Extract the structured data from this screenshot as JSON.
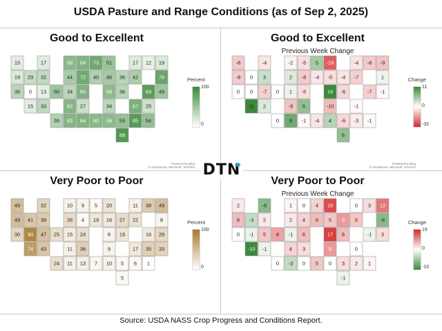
{
  "title": "USDA Pasture and Range Conditions (as of Sep 2, 2025)",
  "source": "Source:  USDA NASS Crop Progress and Conditions Report.",
  "brand": "DTN",
  "credit": {
    "line1": "Powered by Bing",
    "line2": "© GeoNames, Microsoft, TomTom"
  },
  "panels": {
    "ge": {
      "title": "Good to Excellent",
      "subtitle": "",
      "legend": {
        "title": "Percent",
        "max": "100",
        "min": "0",
        "colors": [
          "#ffffff",
          "#3a8a3a"
        ]
      },
      "states": {
        "WA": "15",
        "OR": "19",
        "ID": "29",
        "MT": "17",
        "ND": "59",
        "MN": "64",
        "WI": "73",
        "MI": "51",
        "NY": "17",
        "ME": "19",
        "VT": "12",
        "CA": "35",
        "NV": "0",
        "UT": "13",
        "WY": "32",
        "SD": "44",
        "IA": "72",
        "IL": "40",
        "IN": "46",
        "OH": "36",
        "PA": "42",
        "NH": "76",
        "MA": "49",
        "CO": "50",
        "NE": "34",
        "KS": "62",
        "MO": "65",
        "KY": "58",
        "WV": "36",
        "VA": "67",
        "NJ": "83",
        "MD": "25",
        "AZ": "15",
        "NM": "33",
        "OK": "63",
        "AR": "27",
        "TN": "34",
        "NC": "85",
        "TX": "39",
        "LA": "64",
        "MS": "60",
        "AL": "59",
        "GA": "53",
        "SC": "54",
        "FL": "88"
      }
    },
    "gec": {
      "title": "Good to Excellent",
      "subtitle": "Previous Week Change",
      "legend": {
        "title": "Change",
        "max": "11",
        "mid": "0",
        "min": "-32",
        "colors": [
          "#d42a2a",
          "#ffffff",
          "#3a8a3a"
        ]
      },
      "states": {
        "WA": "-8",
        "OR": "-8",
        "ID": "0",
        "MT": "-4",
        "ND": "-2",
        "MN": "-5",
        "WI": "5",
        "MI": "-24",
        "NY": "-4",
        "ME": "-9",
        "VT": "-8",
        "CA": "0",
        "NV": "0",
        "UT": "-7",
        "WY": "3",
        "SD": "2",
        "IA": "-8",
        "IL": "-4",
        "IN": "-5",
        "OH": "-4",
        "PA": "-7",
        "NH": "1",
        "MA": "-1",
        "CO": "0",
        "NE": "1",
        "KS": "-9",
        "MO": "-5",
        "KY": "16",
        "WV": "-6",
        "VA": "-1",
        "NJ": "-7",
        "AZ": "11",
        "NM": "2",
        "OK": "8",
        "AR": "6",
        "TN": "-10",
        "NC": "-3",
        "TX": "0",
        "LA": "-1",
        "MS": "-4",
        "AL": "4",
        "GA": "-6",
        "SC": "-1",
        "FL": "6"
      }
    },
    "vp": {
      "title": "Very Poor to Poor",
      "subtitle": "",
      "legend": {
        "title": "Percent",
        "max": "100",
        "min": "0",
        "colors": [
          "#ffffff",
          "#a87a2e"
        ]
      },
      "states": {
        "WA": "49",
        "OR": "49",
        "ID": "41",
        "MT": "32",
        "ND": "10",
        "MN": "9",
        "WI": "5",
        "MI": "20",
        "NY": "11",
        "ME": "49",
        "VT": "38",
        "CA": "30",
        "NV": "90",
        "UT": "47",
        "WY": "39",
        "SD": "26",
        "IA": "4",
        "IL": "19",
        "IN": "16",
        "OH": "27",
        "PA": "22",
        "NH": "8",
        "MA": "29",
        "CO": "25",
        "NE": "15",
        "KS": "11",
        "MO": "24",
        "KY": "8",
        "WV": "19",
        "VA": "17",
        "NJ": "16",
        "MD": "35",
        "DE": "33",
        "AZ": "74",
        "NM": "43",
        "OK": "11",
        "AR": "36",
        "TN": "9",
        "NC": "6",
        "TX": "24",
        "LA": "13",
        "MS": "7",
        "AL": "10",
        "GA": "5",
        "SC": "1",
        "FL": "5"
      }
    },
    "vpc": {
      "title": "Very Poor to Poor",
      "subtitle": "Previous Week Change",
      "legend": {
        "title": "Change",
        "max": "19",
        "mid": "0",
        "min": "-10",
        "colors": [
          "#3a8a3a",
          "#ffffff",
          "#d42a2a"
        ]
      },
      "states": {
        "WA": "2",
        "OR": "6",
        "ID": "-3",
        "MT": "-6",
        "ND": "1",
        "MN": "0",
        "WI": "4",
        "MI": "16",
        "NY": "0",
        "ME": "12",
        "VT": "3",
        "CA": "0",
        "NV": "-1",
        "UT": "5",
        "WY": "2",
        "SD": "2",
        "IA": "4",
        "IL": "6",
        "IN": "5",
        "OH": "9",
        "PA": "5",
        "NH": "-6",
        "MA": "3",
        "CO": "8",
        "NE": "-1",
        "KS": "4",
        "MO": "6",
        "KY": "17",
        "WV": "6",
        "VA": "0",
        "NJ": "-1",
        "AZ": "-10",
        "NM": "-1",
        "OK": "-3",
        "AR": "3",
        "TN": "9",
        "NC": "2",
        "TX": "0",
        "LA": "0",
        "MS": "5",
        "AL": "0",
        "GA": "3",
        "SC": "1",
        "FL": "-1"
      }
    }
  }
}
